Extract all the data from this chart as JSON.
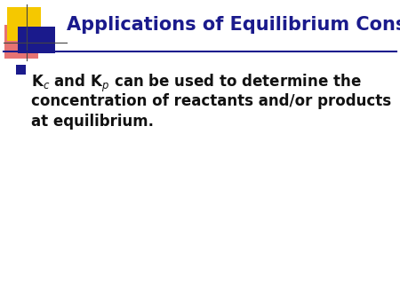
{
  "title": "Applications of Equilibrium Constants",
  "title_color": "#1a1a8c",
  "title_fontsize": 15,
  "bg_color": "#ffffff",
  "bullet_color": "#1a1a8c",
  "body_color": "#111111",
  "body_fontsize": 12,
  "line_color": "#1a1a8c",
  "decor_yellow": "#f5c800",
  "decor_red": "#e05050",
  "decor_blue": "#1a1a8c",
  "decor_line_color": "#444444",
  "line1": "K$_{c}$ and K$_{p}$ can be used to determine the",
  "line2": "concentration of reactants and/or products",
  "line3": "at equilibrium.",
  "fig_width": 4.5,
  "fig_height": 3.38,
  "dpi": 100
}
